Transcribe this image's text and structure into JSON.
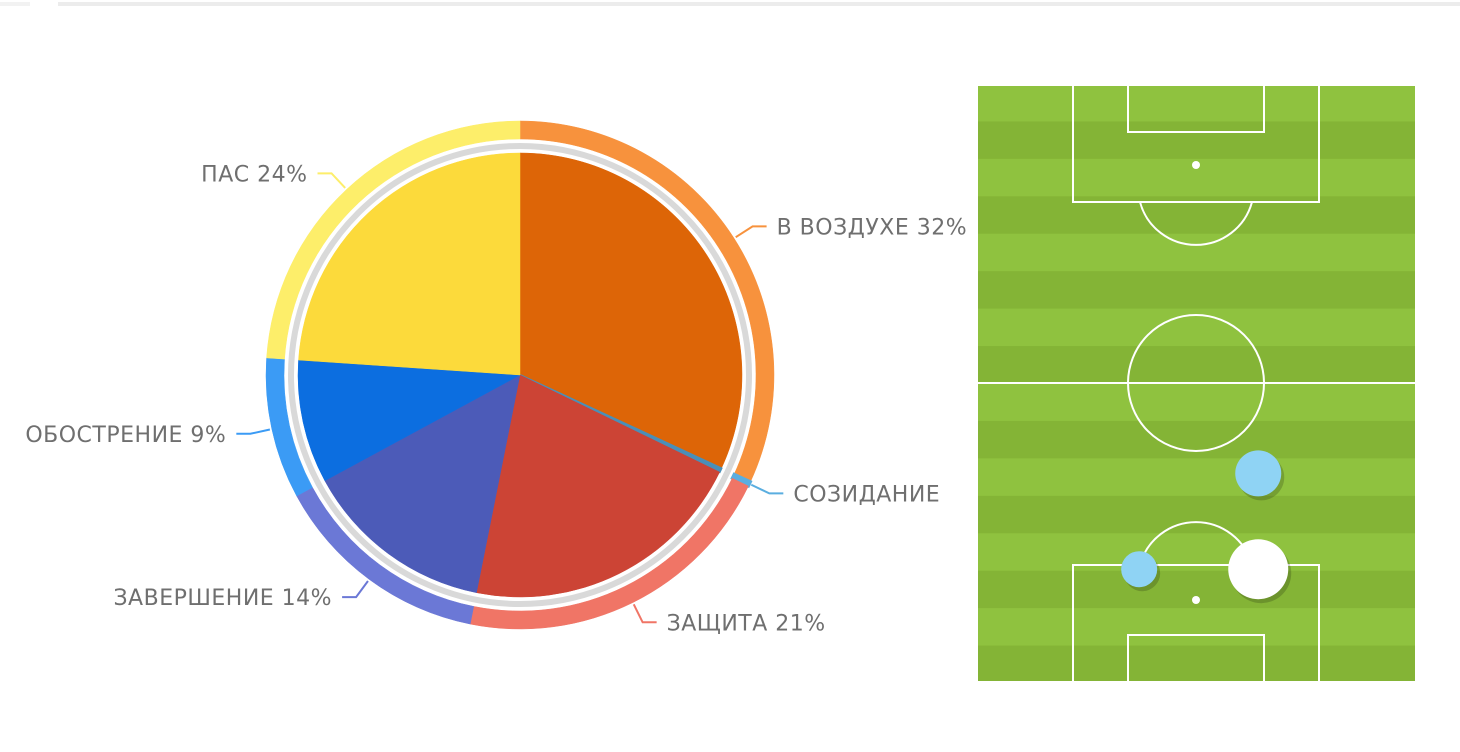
{
  "chart_data": {
    "type": "pie",
    "title": "",
    "slices": [
      {
        "label": "В ВОЗДУХЕ",
        "value": 32,
        "label_text": "В ВОЗДУХЕ 32%",
        "color": "#dd6507",
        "ring_color": "#f7923d"
      },
      {
        "label": "СОЗИДАНИЕ",
        "value": 0.3,
        "label_text": "СОЗИДАНИЕ",
        "color": "#4a8fb8",
        "ring_color": "#5aaee0"
      },
      {
        "label": "ЗАЩИТА",
        "value": 21,
        "label_text": "ЗАЩИТА 21%",
        "color": "#cc4435",
        "ring_color": "#f07566"
      },
      {
        "label": "ЗАВЕРШЕНИЕ",
        "value": 14,
        "label_text": "ЗАВЕРШЕНИЕ 14%",
        "color": "#4c5bb8",
        "ring_color": "#6b78d6"
      },
      {
        "label": "ОБОСТРЕНИЕ",
        "value": 9,
        "label_text": "ОБОСТРЕНИЕ 9%",
        "color": "#0c6ee0",
        "ring_color": "#3b9bf5"
      },
      {
        "label": "ПАС",
        "value": 24,
        "label_text": "ПАС 24%",
        "color": "#fcda3b",
        "ring_color": "#fdee6a"
      }
    ],
    "legend": "none",
    "grid": false
  },
  "pitch": {
    "grass_colors": [
      "#8fc23f",
      "#84b436"
    ],
    "line_color": "#ffffff",
    "markers": [
      {
        "name": "marker-light-blue-large",
        "x": 0.64,
        "y": 0.65,
        "r": 23,
        "color": "#8fd3f4"
      },
      {
        "name": "marker-light-blue-small",
        "x": 0.37,
        "y": 0.81,
        "r": 18,
        "color": "#8fd3f4"
      },
      {
        "name": "marker-white-large",
        "x": 0.64,
        "y": 0.81,
        "r": 30,
        "color": "#ffffff"
      }
    ]
  }
}
